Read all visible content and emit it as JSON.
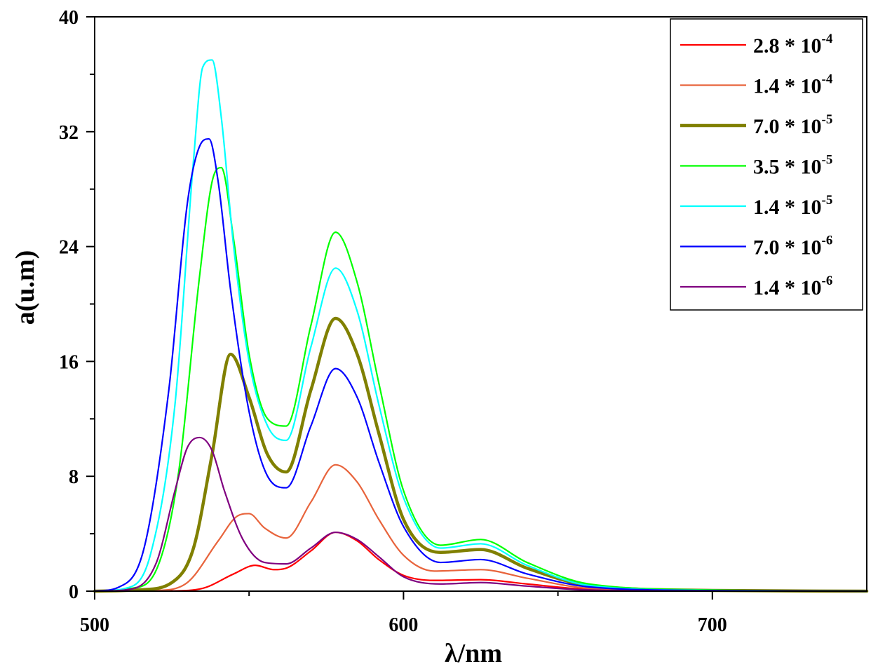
{
  "chart_data": {
    "type": "line",
    "title": "",
    "xlabel": "λ/nm",
    "ylabel": "a(u.m)",
    "xlim": [
      500,
      750
    ],
    "ylim": [
      0,
      40
    ],
    "xticks": [
      500,
      600,
      700
    ],
    "xtick_labels": [
      "500",
      "600",
      "700"
    ],
    "yticks": [
      0,
      8,
      16,
      24,
      32,
      40
    ],
    "ytick_labels": [
      "0",
      "8",
      "16",
      "24",
      "32",
      "40"
    ],
    "grid": false,
    "legend_position": "top-right",
    "series": [
      {
        "name": "2.8 * 10-4",
        "label_base": "2.8 * 10",
        "label_exp": "-4",
        "color": "#ff0000",
        "line_width": 2.2,
        "x": [
          500,
          525,
          535,
          545,
          552,
          558,
          562,
          570,
          578,
          585,
          592,
          600,
          610,
          625,
          640,
          660,
          700,
          750
        ],
        "y": [
          0,
          0.02,
          0.2,
          1.2,
          1.8,
          1.5,
          1.6,
          2.8,
          4.1,
          3.5,
          2.2,
          1.1,
          0.75,
          0.8,
          0.5,
          0.12,
          0.02,
          0
        ]
      },
      {
        "name": "1.4 * 10-4",
        "label_base": "1.4 * 10",
        "label_exp": "-4",
        "color": "#e8643c",
        "line_width": 2.2,
        "x": [
          500,
          520,
          530,
          540,
          546,
          550,
          555,
          562,
          570,
          578,
          585,
          592,
          600,
          610,
          625,
          640,
          660,
          700,
          750
        ],
        "y": [
          0,
          0.05,
          0.6,
          3.5,
          5.2,
          5.4,
          4.4,
          3.7,
          6.2,
          8.8,
          7.6,
          5.0,
          2.5,
          1.4,
          1.5,
          0.9,
          0.2,
          0.03,
          0
        ]
      },
      {
        "name": "7.0 * 10-5",
        "label_base": "7.0 * 10",
        "label_exp": "-5",
        "color": "#808000",
        "line_width": 4.5,
        "x": [
          500,
          515,
          525,
          532,
          538,
          544,
          550,
          556,
          562,
          570,
          578,
          585,
          592,
          600,
          612,
          625,
          640,
          660,
          700,
          750
        ],
        "y": [
          0,
          0.1,
          0.6,
          3.0,
          9.5,
          16.5,
          13.5,
          9.5,
          8.3,
          14.0,
          19.0,
          16.5,
          11.0,
          5.0,
          2.7,
          2.9,
          1.6,
          0.4,
          0.05,
          0
        ]
      },
      {
        "name": "3.5 * 10-5",
        "label_base": "3.5 * 10",
        "label_exp": "-5",
        "color": "#00ff00",
        "line_width": 2.2,
        "x": [
          500,
          512,
          520,
          527,
          534,
          538,
          541,
          545,
          550,
          556,
          562,
          570,
          578,
          585,
          592,
          600,
          612,
          625,
          640,
          660,
          700,
          750
        ],
        "y": [
          0,
          0.2,
          1.5,
          8.0,
          22.0,
          28.5,
          29.5,
          24.5,
          16.5,
          12.0,
          11.5,
          18.5,
          25.0,
          21.5,
          14.5,
          7.0,
          3.2,
          3.6,
          2.0,
          0.5,
          0.08,
          0
        ]
      },
      {
        "name": "1.4 * 10-5",
        "label_base": "1.4 * 10",
        "label_exp": "-5",
        "color": "#00ffff",
        "line_width": 2.2,
        "x": [
          500,
          510,
          518,
          526,
          532,
          535,
          538,
          541,
          545,
          550,
          556,
          562,
          570,
          578,
          585,
          592,
          600,
          612,
          625,
          640,
          660,
          700,
          750
        ],
        "y": [
          0,
          0.2,
          2.5,
          13.0,
          30.0,
          36.5,
          37.0,
          33.0,
          24.0,
          16.0,
          11.5,
          10.5,
          17.0,
          22.5,
          19.5,
          13.0,
          6.5,
          3.0,
          3.3,
          1.8,
          0.4,
          0.05,
          0
        ]
      },
      {
        "name": "7.0 * 10-6",
        "label_base": "7.0 * 10",
        "label_exp": "-6",
        "color": "#0000ff",
        "line_width": 2.2,
        "x": [
          500,
          508,
          516,
          524,
          530,
          534,
          537,
          540,
          544,
          550,
          556,
          562,
          570,
          578,
          585,
          592,
          600,
          612,
          625,
          640,
          660,
          700,
          750
        ],
        "y": [
          0,
          0.3,
          3.0,
          14.0,
          27.0,
          31.0,
          31.5,
          28.5,
          21.0,
          12.5,
          8.0,
          7.2,
          11.5,
          15.5,
          13.5,
          9.0,
          4.5,
          2.0,
          2.2,
          1.2,
          0.3,
          0.04,
          0
        ]
      },
      {
        "name": "1.4 * 10-6",
        "label_base": "1.4 * 10",
        "label_exp": "-6",
        "color": "#800080",
        "line_width": 2.2,
        "x": [
          500,
          512,
          520,
          526,
          530,
          534,
          538,
          542,
          548,
          555,
          562,
          570,
          578,
          585,
          592,
          600,
          612,
          625,
          640,
          660,
          700,
          750
        ],
        "y": [
          0,
          0.15,
          2.0,
          7.0,
          10.0,
          10.7,
          9.8,
          7.0,
          3.6,
          2.0,
          1.9,
          3.0,
          4.1,
          3.6,
          2.4,
          1.0,
          0.5,
          0.6,
          0.35,
          0.08,
          0.01,
          0
        ]
      }
    ]
  }
}
